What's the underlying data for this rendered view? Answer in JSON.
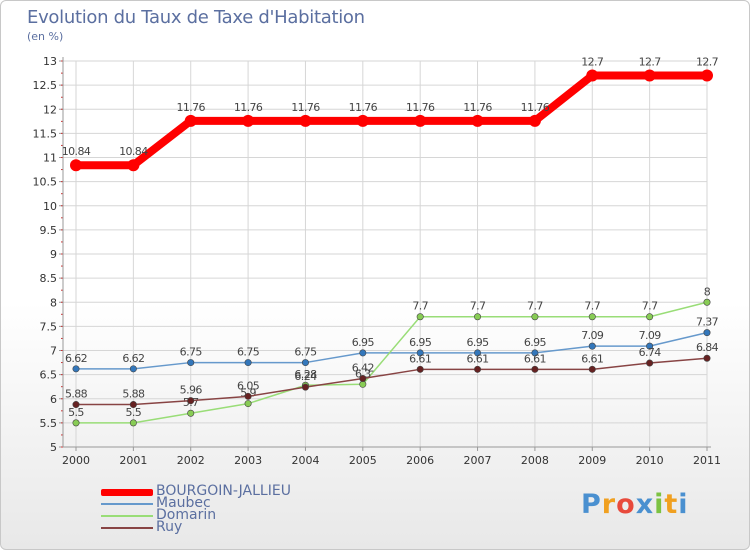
{
  "colors": {
    "axis": "#999999",
    "grid": "#d6d6d6",
    "text": "#333333",
    "title": "#5b6fa0"
  },
  "logo": {
    "letters": [
      "P",
      "r",
      "o",
      "x",
      "i",
      "t",
      "i"
    ],
    "colors": [
      "#4a90d0",
      "#f0a020",
      "#e84a3c",
      "#4a90d0",
      "#7cc242",
      "#f0a020",
      "#4a90d0"
    ]
  },
  "chart_data": {
    "type": "line",
    "title": "Evolution du Taux de Taxe d'Habitation",
    "subtitle": "(en %)",
    "xlabel": "",
    "ylabel": "",
    "x": [
      "2000",
      "2001",
      "2002",
      "2003",
      "2004",
      "2005",
      "2006",
      "2007",
      "2008",
      "2009",
      "2010",
      "2011"
    ],
    "ylim": [
      5,
      13
    ],
    "yticks": [
      "5",
      "5.5",
      "6",
      "6.5",
      "7",
      "7.5",
      "8",
      "8.5",
      "9",
      "9.5",
      "10",
      "10.5",
      "11",
      "11.5",
      "12",
      "12.5",
      "13"
    ],
    "legend_position": "bottom-left",
    "grid": true,
    "series": [
      {
        "name": "Maubec",
        "color": "#6699cc",
        "marker": "#3377bb",
        "values": [
          6.62,
          6.62,
          6.75,
          6.75,
          6.75,
          6.95,
          6.95,
          6.95,
          6.95,
          7.09,
          7.09,
          7.37
        ],
        "labels": [
          "6.62",
          "6.62",
          "6.75",
          "6.75",
          "6.75",
          "6.95",
          "6.95",
          "6.95",
          "6.95",
          "7.09",
          "7.09",
          "7.37"
        ]
      },
      {
        "name": "Domarin",
        "color": "#99dd77",
        "marker": "#88cc55",
        "values": [
          5.5,
          5.5,
          5.7,
          5.9,
          6.28,
          6.3,
          7.7,
          7.7,
          7.7,
          7.7,
          7.7,
          8
        ],
        "labels": [
          "5.5",
          "5.5",
          "5.7",
          "5.9",
          "6.28",
          "6.3",
          "7.7",
          "7.7",
          "7.7",
          "7.7",
          "7.7",
          "8"
        ]
      },
      {
        "name": "Ruy",
        "color": "#884444",
        "marker": "#662222",
        "values": [
          5.88,
          5.88,
          5.96,
          6.05,
          6.24,
          6.42,
          6.61,
          6.61,
          6.61,
          6.61,
          6.74,
          6.84
        ],
        "labels": [
          "5.88",
          "5.88",
          "5.96",
          "6.05",
          "6.24",
          "6.42",
          "6.61",
          "6.61",
          "6.61",
          "6.61",
          "6.74",
          "6.84"
        ]
      },
      {
        "name": "BOURGOIN-JALLIEU",
        "color": "#ff0000",
        "marker": "#ff0000",
        "values": [
          10.84,
          10.84,
          11.76,
          11.76,
          11.76,
          11.76,
          11.76,
          11.76,
          11.76,
          12.7,
          12.7,
          12.7
        ],
        "labels": [
          "10.84",
          "10.84",
          "11.76",
          "11.76",
          "11.76",
          "11.76",
          "11.76",
          "11.76",
          "11.76",
          "12.7",
          "12.7",
          "12.7"
        ]
      }
    ]
  }
}
